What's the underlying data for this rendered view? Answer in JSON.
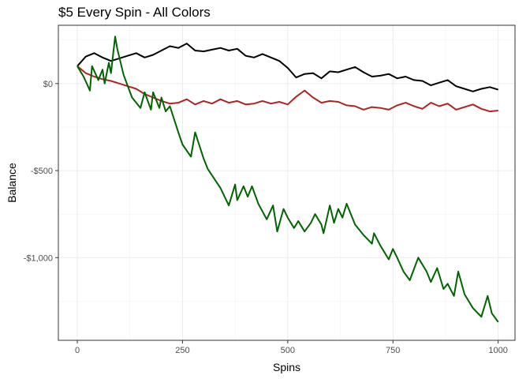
{
  "chart_data": {
    "type": "line",
    "title": "$5 Every Spin - All Colors",
    "xlabel": "Spins",
    "ylabel": "Balance",
    "xlim": [
      -45,
      1040
    ],
    "ylim": [
      -1475,
      335
    ],
    "x_ticks": [
      {
        "value": 0,
        "label": "0"
      },
      {
        "value": 250,
        "label": "250"
      },
      {
        "value": 500,
        "label": "500"
      },
      {
        "value": 750,
        "label": "750"
      },
      {
        "value": 1000,
        "label": "1000"
      }
    ],
    "y_ticks": [
      {
        "value": 0,
        "label": "$0"
      },
      {
        "value": -500,
        "label": "-$500"
      },
      {
        "value": -1000,
        "label": "-$1,000"
      }
    ],
    "grid": true,
    "legend": "none",
    "series": [
      {
        "color": "#000000",
        "x": [
          0,
          20,
          40,
          60,
          80,
          100,
          120,
          140,
          160,
          180,
          200,
          220,
          240,
          260,
          280,
          300,
          320,
          340,
          360,
          380,
          400,
          420,
          440,
          460,
          480,
          500,
          520,
          540,
          560,
          580,
          600,
          620,
          640,
          660,
          680,
          700,
          720,
          740,
          760,
          780,
          800,
          820,
          840,
          860,
          880,
          900,
          920,
          940,
          960,
          980,
          1000
        ],
        "y": [
          100,
          155,
          175,
          150,
          130,
          145,
          160,
          175,
          150,
          165,
          190,
          215,
          205,
          230,
          190,
          185,
          195,
          205,
          190,
          200,
          160,
          150,
          170,
          150,
          130,
          90,
          35,
          55,
          60,
          30,
          70,
          65,
          80,
          95,
          65,
          40,
          45,
          55,
          30,
          40,
          20,
          15,
          -10,
          5,
          20,
          -15,
          -30,
          -45,
          -30,
          -20,
          -35
        ]
      },
      {
        "color": "#b22222",
        "x": [
          0,
          20,
          40,
          60,
          80,
          100,
          120,
          140,
          160,
          180,
          200,
          220,
          240,
          260,
          280,
          300,
          320,
          340,
          360,
          380,
          400,
          420,
          440,
          460,
          480,
          500,
          520,
          540,
          560,
          580,
          600,
          620,
          640,
          660,
          680,
          700,
          720,
          740,
          760,
          780,
          800,
          820,
          840,
          860,
          880,
          900,
          920,
          940,
          960,
          980,
          1000
        ],
        "y": [
          100,
          60,
          40,
          25,
          15,
          0,
          -15,
          -30,
          -60,
          -80,
          -100,
          -115,
          -110,
          -90,
          -120,
          -100,
          -115,
          -90,
          -110,
          -100,
          -120,
          -115,
          -100,
          -115,
          -105,
          -120,
          -75,
          -40,
          -80,
          -110,
          -100,
          -105,
          -125,
          -130,
          -150,
          -135,
          -140,
          -150,
          -125,
          -110,
          -130,
          -145,
          -110,
          -130,
          -115,
          -150,
          -135,
          -120,
          -145,
          -160,
          -155
        ]
      },
      {
        "color": "#006400",
        "x": [
          0,
          15,
          30,
          35,
          50,
          60,
          65,
          75,
          80,
          90,
          95,
          110,
          130,
          150,
          160,
          175,
          180,
          195,
          200,
          210,
          220,
          240,
          250,
          270,
          280,
          300,
          310,
          340,
          360,
          375,
          380,
          395,
          405,
          415,
          430,
          450,
          465,
          475,
          490,
          500,
          515,
          525,
          540,
          555,
          565,
          580,
          585,
          600,
          610,
          620,
          630,
          640,
          660,
          680,
          700,
          705,
          720,
          740,
          750,
          760,
          775,
          790,
          810,
          830,
          840,
          855,
          870,
          880,
          895,
          905,
          920,
          940,
          960,
          975,
          985,
          1000
        ],
        "y": [
          100,
          40,
          -40,
          100,
          20,
          80,
          0,
          120,
          60,
          270,
          200,
          50,
          -80,
          -140,
          -50,
          -150,
          -50,
          -140,
          -80,
          -160,
          -130,
          -280,
          -350,
          -420,
          -280,
          -430,
          -490,
          -600,
          -700,
          -580,
          -670,
          -590,
          -650,
          -590,
          -690,
          -780,
          -700,
          -850,
          -720,
          -770,
          -830,
          -790,
          -850,
          -800,
          -750,
          -810,
          -860,
          -700,
          -800,
          -720,
          -770,
          -690,
          -810,
          -870,
          -920,
          -860,
          -930,
          -1010,
          -950,
          -1000,
          -1080,
          -1130,
          -1000,
          -1080,
          -1140,
          -1060,
          -1180,
          -1150,
          -1220,
          -1080,
          -1210,
          -1290,
          -1340,
          -1220,
          -1320,
          -1370
        ]
      }
    ]
  }
}
